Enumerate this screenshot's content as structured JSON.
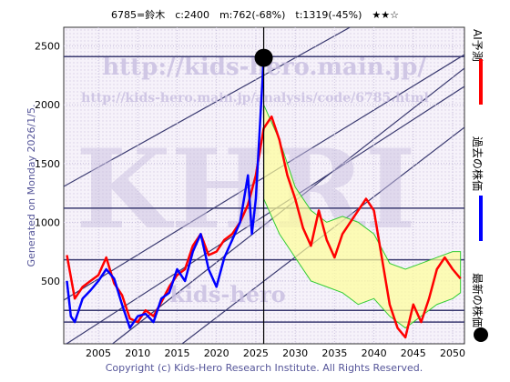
{
  "chart_data": {
    "type": "line",
    "title": "6785=鈴木　c:2400　m:762(-68%)　t:1319(-45%)　★★☆",
    "generated": "Generated on Monday 2026/1/5.",
    "copyright": "Copyright (c) Kids-Hero Research Institute. All Rights Reserved.",
    "watermarks": [
      "http://kids-hero.main.jp/",
      "http://kids-hero.main.jp/analysis/code/6785.html",
      "KHRI",
      "kids-hero"
    ],
    "xlim": [
      2000.6,
      2051.5
    ],
    "ylim": [
      -35,
      2660
    ],
    "xticks": [
      2005,
      2010,
      2015,
      2020,
      2025,
      2030,
      2035,
      2040,
      2045,
      2050
    ],
    "yticks": [
      500,
      1000,
      1500,
      2000,
      2500
    ],
    "grid": true,
    "hlines": [
      2410,
      1120,
      680,
      250,
      150
    ],
    "now_x": 2026,
    "band": {
      "color": "#ffff99",
      "line_color": "#33cc33",
      "x": [
        2026,
        2028,
        2030,
        2032,
        2034,
        2036,
        2038,
        2040,
        2042,
        2044,
        2046,
        2048,
        2050,
        2051
      ],
      "upper": [
        2000,
        1700,
        1300,
        1100,
        1000,
        1050,
        1000,
        900,
        650,
        600,
        650,
        700,
        750,
        750
      ],
      "lower": [
        1200,
        900,
        700,
        500,
        450,
        400,
        300,
        350,
        200,
        100,
        200,
        300,
        350,
        400
      ]
    },
    "series": [
      {
        "name": "AI予測",
        "color": "#ff0000",
        "x": [
          2001,
          2002,
          2003,
          2004,
          2005,
          2006,
          2007,
          2008,
          2009,
          2010,
          2011,
          2012,
          2013,
          2014,
          2015,
          2016,
          2017,
          2018,
          2019,
          2020,
          2021,
          2022,
          2023,
          2024,
          2025,
          2026,
          2027,
          2028,
          2029,
          2030,
          2031,
          2032,
          2033,
          2034,
          2035,
          2036,
          2037,
          2038,
          2039,
          2040,
          2041,
          2042,
          2043,
          2044,
          2045,
          2046,
          2047,
          2048,
          2049,
          2050,
          2051
        ],
        "values": [
          720,
          350,
          450,
          500,
          550,
          700,
          480,
          380,
          180,
          150,
          250,
          200,
          320,
          450,
          550,
          600,
          800,
          900,
          720,
          750,
          850,
          900,
          1000,
          1150,
          1400,
          1800,
          1900,
          1700,
          1400,
          1200,
          950,
          800,
          1100,
          850,
          700,
          900,
          1000,
          1100,
          1200,
          1100,
          700,
          300,
          100,
          20,
          300,
          150,
          350,
          600,
          700,
          600,
          520
        ]
      },
      {
        "name": "過去の株価",
        "color": "#0000ff",
        "x": [
          2001,
          2001.5,
          2002,
          2003,
          2004,
          2005,
          2006,
          2007,
          2008,
          2009,
          2010,
          2011,
          2012,
          2013,
          2014,
          2015,
          2016,
          2017,
          2018,
          2019,
          2020,
          2021,
          2022,
          2023,
          2024,
          2024.5,
          2025,
          2025.5,
          2026
        ],
        "values": [
          500,
          200,
          150,
          350,
          420,
          500,
          600,
          520,
          300,
          100,
          200,
          220,
          150,
          350,
          400,
          600,
          500,
          750,
          900,
          600,
          450,
          700,
          850,
          1000,
          1400,
          900,
          1200,
          1800,
          2400
        ]
      }
    ],
    "latest": {
      "name": "最新の株価",
      "x": 2026,
      "value": 2400,
      "color": "#000000"
    }
  }
}
